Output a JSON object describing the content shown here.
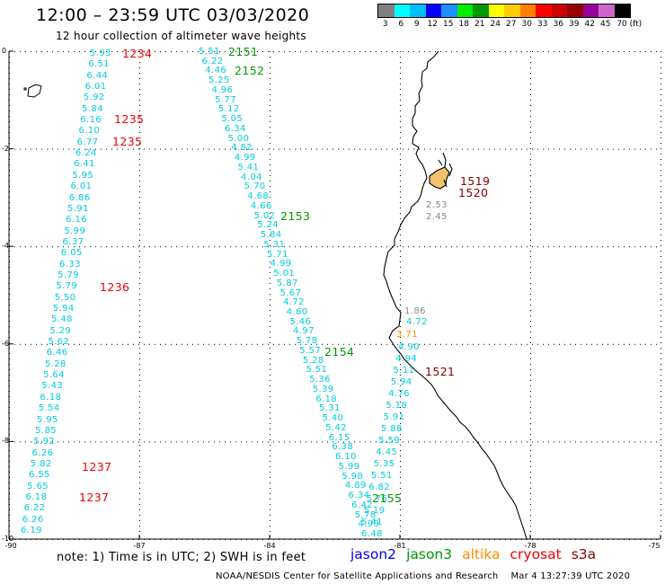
{
  "header": {
    "title": "12:00 – 23:59 UTC 03/03/2020",
    "subtitle": "12 hour collection of altimeter wave heights"
  },
  "color_scale": {
    "swatches": [
      "#808080",
      "#00ffff",
      "#00bfff",
      "#0000ff",
      "#1e90ff",
      "#00ee00",
      "#009900",
      "#ffff00",
      "#ffcc00",
      "#ff8000",
      "#ff0000",
      "#cc0000",
      "#990000",
      "#990099",
      "#cc66cc",
      "#000000"
    ],
    "labels": [
      "3",
      "6",
      "9",
      "12",
      "15",
      "18",
      "21",
      "24",
      "27",
      "30",
      "33",
      "36",
      "39",
      "42",
      "45",
      "70 (ft)"
    ]
  },
  "axes": {
    "y_ticks": [
      "0",
      "-2",
      "-4",
      "-6",
      "-8",
      "-10"
    ],
    "x_ticks": [
      "-90",
      "-87",
      "-84",
      "-81",
      "-78",
      "-75"
    ]
  },
  "colors": {
    "jason2": "#0000ff",
    "jason3": "#009900",
    "altika": "#ff8c00",
    "cryosat": "#ee0000",
    "s3a": "#880000",
    "obs": "#00ccdd",
    "coast": "#000000",
    "land_fill": "#f2c36b"
  },
  "tracks": {
    "west_values": [
      "5.93",
      "6.51",
      "6.44",
      "6.01",
      "5.92",
      "5.84",
      "6.16",
      "6.10",
      "6.77",
      "6.24",
      "6.41",
      "5.95",
      "6.01",
      "6.86",
      "5.91",
      "6.16",
      "5.99",
      "6.37",
      "6.05",
      "6.33",
      "5.79",
      "5.79",
      "5.50",
      "5.94",
      "5.48",
      "5.29",
      "5.62",
      "6.46",
      "5.28",
      "5.64",
      "5.43",
      "6.18",
      "5.54",
      "5.95",
      "5.85",
      "5.92",
      "6.26",
      "5.82",
      "6.55",
      "5.65",
      "6.18",
      "6.22",
      "6.26",
      "6.19"
    ],
    "middle_values": [
      "5.51",
      "6.22",
      "4.46",
      "5.25",
      "4.96",
      "5.77",
      "5.12",
      "5.05",
      "6.34",
      "5.00",
      "4.82",
      "4.99",
      "5.41",
      "4.04",
      "5.70",
      "4.68",
      "4.66",
      "5.02",
      "5.24",
      "5.84",
      "5.31",
      "5.71",
      "4.99",
      "5.01",
      "5.87",
      "5.67",
      "4.72",
      "4.60",
      "5.46",
      "4.97",
      "5.78",
      "5.57",
      "5.28",
      "5.51",
      "5.36",
      "5.39",
      "6.18",
      "5.31",
      "5.40",
      "5.42",
      "6.15",
      "6.38",
      "6.10",
      "5.99",
      "5.98",
      "4.89",
      "6.34",
      "6.42",
      "5.78",
      "4.99",
      "6.48"
    ],
    "east_values": [
      "4.90",
      "4.94",
      "5.11",
      "5.94",
      "4.76",
      "5.18",
      "5.91",
      "5.88",
      "5.59",
      "4.45",
      "5.35",
      "5.51",
      "6.82",
      "5.76",
      "5.19",
      "5.41"
    ],
    "coast_values": [
      {
        "v": "2.53",
        "color": "#888888"
      },
      {
        "v": "2.45",
        "color": "#888888"
      },
      {
        "v": "1.86",
        "color": "#888888"
      },
      {
        "v": "4.72",
        "color": "#00ccdd"
      },
      {
        "v": "3.71",
        "color": "#ff8c00"
      }
    ]
  },
  "pass_labels": [
    {
      "text": "1234",
      "sat": "cryosat"
    },
    {
      "text": "1235",
      "sat": "cryosat"
    },
    {
      "text": "1235",
      "sat": "cryosat"
    },
    {
      "text": "1236",
      "sat": "cryosat"
    },
    {
      "text": "1237",
      "sat": "cryosat"
    },
    {
      "text": "1237",
      "sat": "cryosat"
    },
    {
      "text": "2151",
      "sat": "jason3"
    },
    {
      "text": "2152",
      "sat": "jason3"
    },
    {
      "text": "2153",
      "sat": "jason3"
    },
    {
      "text": "2154",
      "sat": "jason3"
    },
    {
      "text": "2155",
      "sat": "jason3"
    },
    {
      "text": "1519",
      "sat": "s3a"
    },
    {
      "text": "1520",
      "sat": "s3a"
    },
    {
      "text": "1521",
      "sat": "s3a"
    }
  ],
  "footer": {
    "note": "note:  1) Time is in UTC;  2) SWH is in feet",
    "legend": [
      {
        "label": "jason2",
        "sat": "jason2"
      },
      {
        "label": "jason3",
        "sat": "jason3"
      },
      {
        "label": "altika",
        "sat": "altika"
      },
      {
        "label": "cryosat",
        "sat": "cryosat"
      },
      {
        "label": "s3a",
        "sat": "s3a"
      }
    ],
    "credit": "NOAA/NESDIS Center for Satellite Applications and Research",
    "timestamp": "Mar  4 13:27:39 UTC 2020"
  }
}
